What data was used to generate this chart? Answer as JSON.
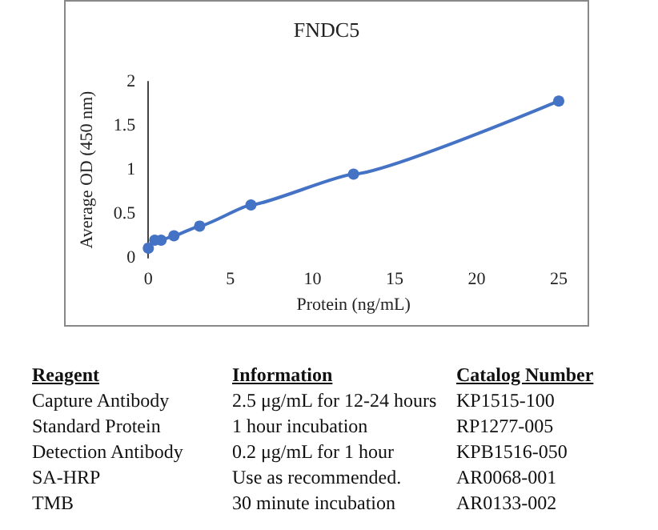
{
  "chart_data": {
    "type": "line",
    "title": "FNDC5",
    "xlabel": "Protein (ng/mL)",
    "ylabel": "Average OD (450 nm)",
    "x": [
      0,
      0.39,
      0.78,
      1.56,
      3.125,
      6.25,
      12.5,
      25
    ],
    "series": [
      {
        "color": "#4472c4",
        "values": [
          0.11,
          0.2,
          0.2,
          0.25,
          0.36,
          0.6,
          0.95,
          1.78
        ]
      }
    ],
    "xlim": [
      0,
      25
    ],
    "xticks": [
      0,
      5,
      10,
      15,
      20,
      25
    ],
    "ylim": [
      0,
      2
    ],
    "yticks": [
      0,
      0.5,
      1,
      1.5,
      2
    ],
    "grid": false,
    "marker": "circle",
    "line_style": "solid",
    "annotations": [
      "Reagent",
      "Information",
      "Catalog Number",
      "Capture Antibody",
      "2.5 μg/mL for 12-24 hours",
      "KP1515-100",
      "Standard Protein",
      "1 hour incubation",
      "RP1277-005",
      "Detection Antibody",
      "0.2 μg/mL for 1 hour",
      "KPB1516-050",
      "SA-HRP",
      "Use as recommended.",
      "AR0068-001",
      "TMB",
      "30 minute incubation",
      "AR0133-002"
    ]
  }
}
